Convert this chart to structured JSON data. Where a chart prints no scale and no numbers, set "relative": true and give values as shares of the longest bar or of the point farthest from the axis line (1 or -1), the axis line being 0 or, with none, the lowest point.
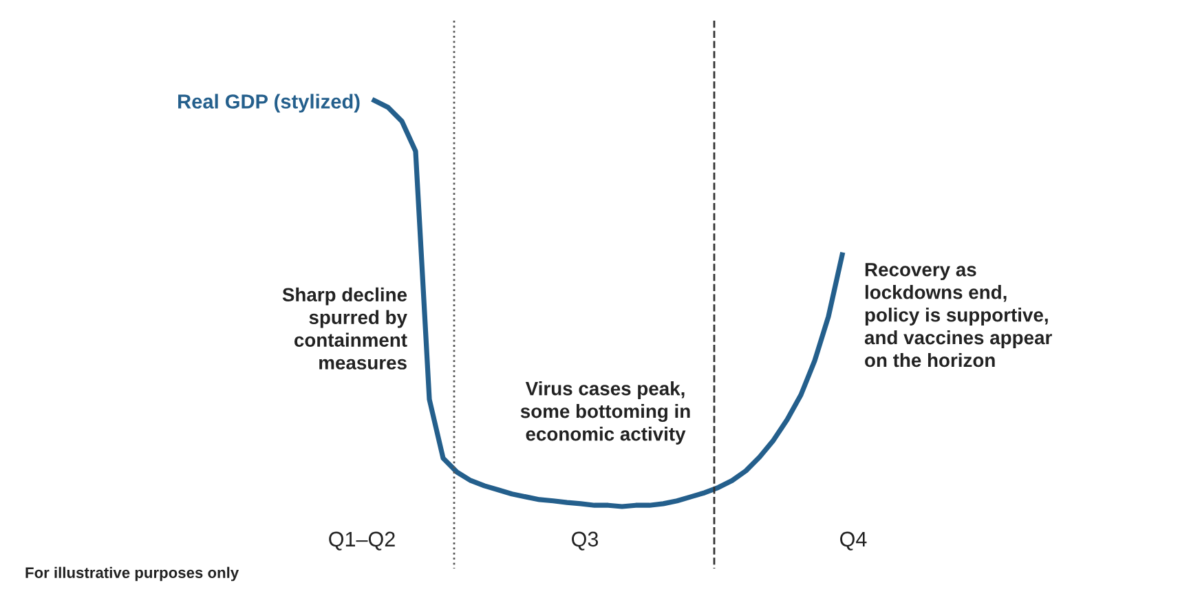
{
  "chart_data": {
    "type": "line",
    "relative": true,
    "categories": [
      null,
      null,
      null,
      null,
      null,
      null,
      null,
      null,
      null,
      null,
      null,
      null,
      null,
      null,
      null,
      null,
      null,
      null,
      null,
      null,
      null,
      null,
      null,
      null,
      null,
      null,
      null,
      null,
      null,
      null,
      null,
      null,
      null,
      null,
      null
    ],
    "series": [
      {
        "name": "Real GDP (stylized)",
        "color": "#245f8c",
        "values": [
          1,
          0.983,
          0.949,
          0.875,
          0.264,
          0.119,
          0.085,
          0.064,
          0.051,
          0.041,
          0.031,
          0.024,
          0.017,
          0.014,
          0.01,
          0.007,
          0.003,
          0.003,
          0,
          0.003,
          0.003,
          0.007,
          0.014,
          0.024,
          0.034,
          0.047,
          0.064,
          0.088,
          0.122,
          0.163,
          0.214,
          0.275,
          0.359,
          0.468,
          0.62
        ]
      }
    ],
    "annotations": [
      "Sharp decline\nspurred by\ncontainment\nmeasures",
      "Virus cases peak,\nsome bottoming in\neconomic activity",
      "Recovery as\nlockdowns end,\npolicy is supportive,\nand vaccines appear\non the horizon",
      "Q1–Q2",
      "Q3",
      "Q4",
      "For illustrative purposes only"
    ],
    "line_style": "solid"
  }
}
